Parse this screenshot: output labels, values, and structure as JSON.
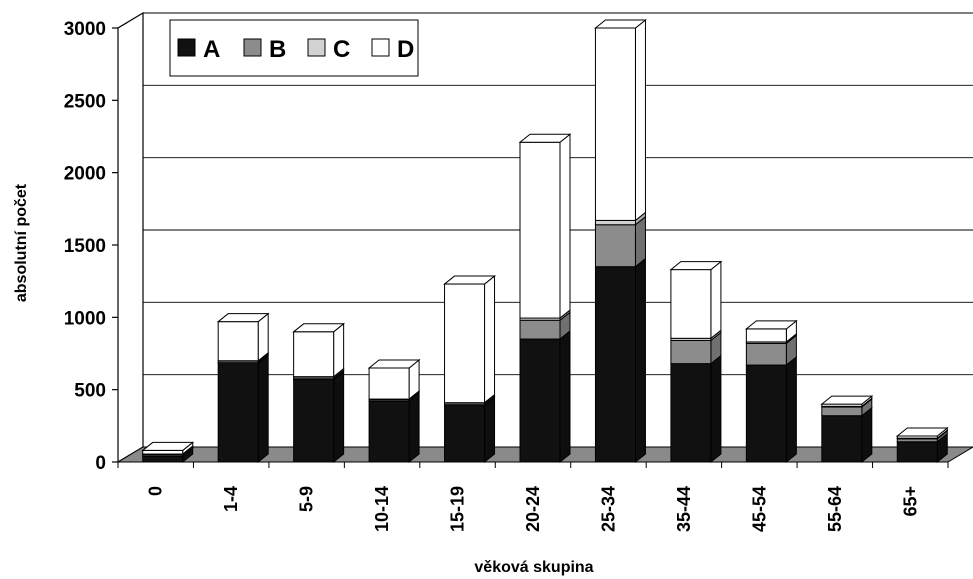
{
  "chart_data": {
    "type": "bar",
    "stacked": true,
    "three_d": true,
    "title": "",
    "xlabel": "věková skupina",
    "ylabel": "absolutní počet",
    "ylim": [
      0,
      3000
    ],
    "yticks": [
      0,
      500,
      1000,
      1500,
      2000,
      2500,
      3000
    ],
    "grid": true,
    "legend_position": "top-left",
    "categories": [
      "0",
      "1-4",
      "5-9",
      "10-14",
      "15-19",
      "20-24",
      "25-34",
      "35-44",
      "45-54",
      "55-64",
      "65+"
    ],
    "series": [
      {
        "name": "A",
        "color": "#111111",
        "values": [
          40,
          680,
          570,
          420,
          390,
          850,
          1350,
          680,
          670,
          320,
          140
        ]
      },
      {
        "name": "B",
        "color": "#8c8c8c",
        "values": [
          10,
          10,
          10,
          10,
          10,
          130,
          290,
          160,
          150,
          60,
          20
        ]
      },
      {
        "name": "C",
        "color": "#d2d2d2",
        "values": [
          5,
          10,
          10,
          5,
          10,
          15,
          30,
          15,
          10,
          5,
          5
        ]
      },
      {
        "name": "D",
        "color": "#ffffff",
        "values": [
          25,
          270,
          310,
          215,
          820,
          1215,
          1330,
          475,
          90,
          15,
          15
        ]
      }
    ]
  }
}
